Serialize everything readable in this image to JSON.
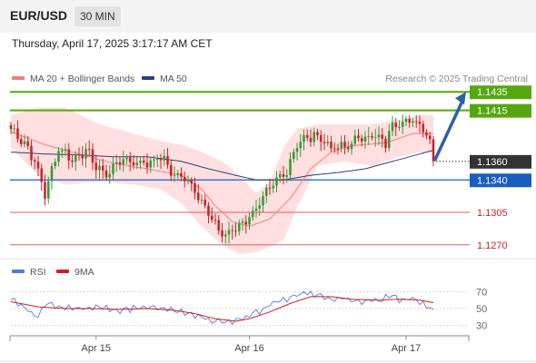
{
  "header": {
    "pair": "EUR/USD",
    "timeframe": "30 MIN",
    "datetime": "Thursday, April 17, 2025 3:17:17 AM CET"
  },
  "colors": {
    "up": "#3a9a3a",
    "down": "#c9252c",
    "ma20": "#f08080",
    "band_fill": "#ffd9d9",
    "ma50": "#2a3f7a",
    "target_green": "#55a70f",
    "support_blue": "#1b5dbf",
    "level_red": "#cc1f1f",
    "current_price_bg": "#333333",
    "rsi": "#5577dd",
    "rsi_ma": "#cc1f1f",
    "arrow": "#2f5fa8"
  },
  "main_legend": [
    {
      "label": "MA 20 + Bollinger Bands",
      "color": "#f08080"
    },
    {
      "label": "MA 50",
      "color": "#2a3f7a"
    }
  ],
  "research": "Research © 2025 Trading Central",
  "rsi_legend": [
    {
      "label": "RSI",
      "color": "#5577dd"
    },
    {
      "label": "9MA",
      "color": "#cc1f1f"
    }
  ],
  "chart_data": {
    "type": "candlestick",
    "title": "",
    "x_ticks": [
      {
        "label": "Apr 15",
        "bar": 25
      },
      {
        "label": "Apr 16",
        "bar": 70
      },
      {
        "label": "Apr 17",
        "bar": 116
      }
    ],
    "ylim": [
      1.126,
      1.1445
    ],
    "levels": [
      {
        "price": 1.1435,
        "label": "1.1435",
        "kind": "target"
      },
      {
        "price": 1.1415,
        "label": "1.1415",
        "kind": "target"
      },
      {
        "price": 1.136,
        "label": "1.1360",
        "kind": "current"
      },
      {
        "price": 1.134,
        "label": "1.1340",
        "kind": "support"
      },
      {
        "price": 1.1305,
        "label": "1.1305",
        "kind": "resistance"
      },
      {
        "price": 1.127,
        "label": "1.1270",
        "kind": "resistance"
      }
    ],
    "forecast_arrow": {
      "from": 1.136,
      "to": 1.1435
    },
    "anchors": {
      "close": [
        [
          0,
          1.1395
        ],
        [
          4,
          1.138
        ],
        [
          7,
          1.136
        ],
        [
          10,
          1.1325
        ],
        [
          14,
          1.1375
        ],
        [
          18,
          1.1362
        ],
        [
          22,
          1.1372
        ],
        [
          25,
          1.1355
        ],
        [
          28,
          1.1345
        ],
        [
          32,
          1.1362
        ],
        [
          35,
          1.136
        ],
        [
          40,
          1.1358
        ],
        [
          44,
          1.1365
        ],
        [
          48,
          1.1345
        ],
        [
          52,
          1.134
        ],
        [
          56,
          1.1318
        ],
        [
          60,
          1.129
        ],
        [
          63,
          1.128
        ],
        [
          66,
          1.1288
        ],
        [
          70,
          1.13
        ],
        [
          73,
          1.1315
        ],
        [
          77,
          1.1335
        ],
        [
          81,
          1.135
        ],
        [
          84,
          1.138
        ],
        [
          87,
          1.1385
        ],
        [
          90,
          1.1388
        ],
        [
          94,
          1.1375
        ],
        [
          98,
          1.1375
        ],
        [
          102,
          1.1385
        ],
        [
          106,
          1.1388
        ],
        [
          110,
          1.138
        ],
        [
          112,
          1.14
        ],
        [
          114,
          1.1403
        ],
        [
          118,
          1.1403
        ],
        [
          121,
          1.1398
        ],
        [
          123,
          1.138
        ],
        [
          124,
          1.136
        ]
      ],
      "ma20": [
        [
          0,
          1.1392
        ],
        [
          10,
          1.1378
        ],
        [
          20,
          1.1368
        ],
        [
          30,
          1.1358
        ],
        [
          40,
          1.1352
        ],
        [
          50,
          1.1345
        ],
        [
          56,
          1.133
        ],
        [
          60,
          1.1312
        ],
        [
          65,
          1.1295
        ],
        [
          70,
          1.129
        ],
        [
          76,
          1.1298
        ],
        [
          82,
          1.132
        ],
        [
          88,
          1.1352
        ],
        [
          94,
          1.137
        ],
        [
          100,
          1.1377
        ],
        [
          110,
          1.138
        ],
        [
          118,
          1.139
        ],
        [
          124,
          1.139
        ]
      ],
      "band_upper": [
        [
          0,
          1.141
        ],
        [
          8,
          1.1418
        ],
        [
          16,
          1.1418
        ],
        [
          26,
          1.14
        ],
        [
          36,
          1.139
        ],
        [
          44,
          1.1382
        ],
        [
          50,
          1.1378
        ],
        [
          56,
          1.137
        ],
        [
          62,
          1.136
        ],
        [
          67,
          1.1345
        ],
        [
          72,
          1.1325
        ],
        [
          76,
          1.1338
        ],
        [
          80,
          1.1375
        ],
        [
          84,
          1.1395
        ],
        [
          90,
          1.14
        ],
        [
          98,
          1.14
        ],
        [
          106,
          1.14
        ],
        [
          114,
          1.1405
        ],
        [
          120,
          1.141
        ],
        [
          124,
          1.141
        ]
      ],
      "band_lower": [
        [
          0,
          1.1375
        ],
        [
          8,
          1.1345
        ],
        [
          16,
          1.1335
        ],
        [
          26,
          1.1338
        ],
        [
          36,
          1.1335
        ],
        [
          44,
          1.133
        ],
        [
          50,
          1.1315
        ],
        [
          56,
          1.129
        ],
        [
          62,
          1.127
        ],
        [
          67,
          1.126
        ],
        [
          72,
          1.1262
        ],
        [
          76,
          1.1268
        ],
        [
          80,
          1.1275
        ],
        [
          84,
          1.131
        ],
        [
          90,
          1.1355
        ],
        [
          98,
          1.136
        ],
        [
          106,
          1.1355
        ],
        [
          114,
          1.1365
        ],
        [
          120,
          1.137
        ],
        [
          124,
          1.137
        ]
      ],
      "ma50": [
        [
          0,
          1.137
        ],
        [
          10,
          1.1368
        ],
        [
          20,
          1.1367
        ],
        [
          30,
          1.1365
        ],
        [
          40,
          1.1365
        ],
        [
          50,
          1.136
        ],
        [
          58,
          1.1352
        ],
        [
          66,
          1.1345
        ],
        [
          72,
          1.134
        ],
        [
          80,
          1.134
        ],
        [
          88,
          1.1345
        ],
        [
          96,
          1.1348
        ],
        [
          104,
          1.1352
        ],
        [
          112,
          1.136
        ],
        [
          118,
          1.1366
        ],
        [
          124,
          1.1372
        ]
      ]
    },
    "rsi": {
      "ylim": [
        20,
        80
      ],
      "ticks": [
        70,
        50,
        30
      ],
      "rsi": [
        [
          0,
          60
        ],
        [
          3,
          55
        ],
        [
          6,
          45
        ],
        [
          8,
          40
        ],
        [
          10,
          55
        ],
        [
          14,
          52
        ],
        [
          20,
          50
        ],
        [
          26,
          52
        ],
        [
          30,
          48
        ],
        [
          36,
          50
        ],
        [
          42,
          51
        ],
        [
          48,
          47
        ],
        [
          52,
          45
        ],
        [
          56,
          40
        ],
        [
          58,
          36
        ],
        [
          62,
          34
        ],
        [
          66,
          36
        ],
        [
          70,
          42
        ],
        [
          74,
          50
        ],
        [
          78,
          58
        ],
        [
          82,
          63
        ],
        [
          86,
          68
        ],
        [
          90,
          66
        ],
        [
          94,
          60
        ],
        [
          98,
          62
        ],
        [
          102,
          58
        ],
        [
          106,
          60
        ],
        [
          110,
          62
        ],
        [
          112,
          64
        ],
        [
          114,
          60
        ],
        [
          118,
          62
        ],
        [
          121,
          56
        ],
        [
          123,
          49
        ],
        [
          124,
          46
        ]
      ],
      "ma": [
        [
          0,
          58
        ],
        [
          8,
          52
        ],
        [
          16,
          50
        ],
        [
          24,
          50
        ],
        [
          32,
          49
        ],
        [
          40,
          50
        ],
        [
          48,
          48
        ],
        [
          54,
          44
        ],
        [
          60,
          38
        ],
        [
          66,
          35
        ],
        [
          70,
          38
        ],
        [
          76,
          46
        ],
        [
          82,
          56
        ],
        [
          88,
          64
        ],
        [
          94,
          64
        ],
        [
          100,
          61
        ],
        [
          108,
          60
        ],
        [
          114,
          61
        ],
        [
          120,
          60
        ],
        [
          124,
          57
        ]
      ]
    }
  }
}
